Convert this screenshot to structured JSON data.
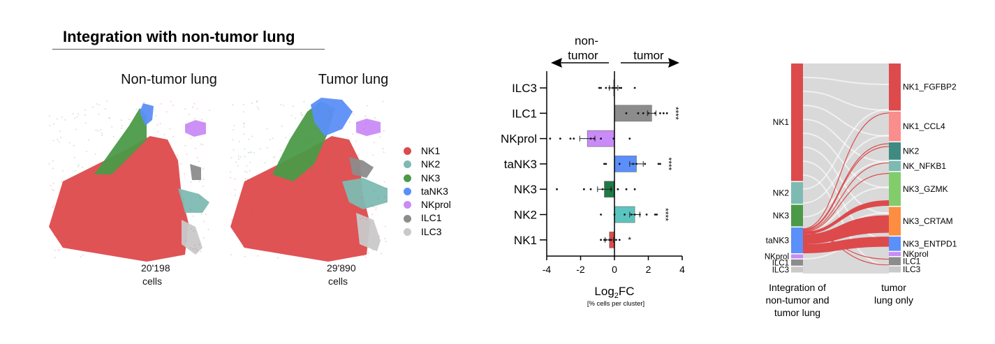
{
  "header": {
    "title": "Integration with non-tumor lung"
  },
  "umap_panels": [
    {
      "title": "Non-tumor lung",
      "count": "20'198",
      "unit": "cells"
    },
    {
      "title": "Tumor lung",
      "count": "29'890",
      "unit": "cells"
    }
  ],
  "legend": [
    {
      "label": "NK1",
      "color": "#dd4a4c"
    },
    {
      "label": "NK2",
      "color": "#7dbab2"
    },
    {
      "label": "NK3",
      "color": "#4b9a48"
    },
    {
      "label": "taNK3",
      "color": "#5b8ff9"
    },
    {
      "label": "NKprol",
      "color": "#c98bf7"
    },
    {
      "label": "ILC1",
      "color": "#8c8c8c"
    },
    {
      "label": "ILC3",
      "color": "#c9c9c9"
    }
  ],
  "chart_data": [
    {
      "type": "bar",
      "orientation": "horizontal",
      "direction_labels": {
        "left": "non-\ntumor",
        "left_line1": "non-",
        "left_line2": "tumor",
        "right": "tumor"
      },
      "categories": [
        "ILC3",
        "ILC1",
        "NKprol",
        "taNK3",
        "NK3",
        "NK2",
        "NK1"
      ],
      "values": [
        -0.05,
        2.2,
        -1.6,
        1.3,
        -0.6,
        1.2,
        -0.3
      ],
      "colors": [
        "#c9c9c9",
        "#8c8c8c",
        "#c98bf7",
        "#5b8ff9",
        "#1f7a45",
        "#5cc4bf",
        "#dd4a4c"
      ],
      "significance": [
        "",
        "****",
        "",
        "****",
        "",
        "****",
        "*"
      ],
      "points": [
        [
          -0.9,
          -0.8,
          -0.5,
          -0.3,
          -0.1,
          0.1,
          0.3,
          0.4,
          1.2
        ],
        [
          0.7,
          1.4,
          1.7,
          2.0,
          2.4,
          2.7,
          2.9,
          3.1
        ],
        [
          -3.8,
          -3.2,
          -2.6,
          -2.4,
          -1.4,
          -1.2,
          -0.8,
          -0.05,
          0.9
        ],
        [
          -0.6,
          -0.5,
          0.3,
          1.1,
          1.3,
          1.8,
          2.6,
          2.7
        ],
        [
          -3.4,
          -1.8,
          -1.4,
          -0.7,
          -0.2,
          0.2,
          0.7,
          1.2
        ],
        [
          -0.8,
          0.0,
          0.6,
          1.0,
          1.2,
          1.5,
          1.9,
          2.4,
          2.5
        ],
        [
          -0.8,
          -0.6,
          -0.5,
          -0.3,
          -0.2,
          0.1,
          0.3
        ]
      ],
      "errors": [
        0.25,
        0.25,
        0.45,
        0.4,
        0.4,
        0.3,
        0.25
      ],
      "xlim": [
        -4,
        4
      ],
      "xticks": [
        "-4",
        "-2",
        "0",
        "2",
        "4"
      ],
      "xlabel_main": "Log",
      "xlabel_sub": "2",
      "xlabel_tail": "FC",
      "xlabel_note": "[% cells per cluster]"
    },
    {
      "type": "sankey",
      "left_nodes": [
        {
          "label": "NK1",
          "color": "#dd4a4c",
          "share": 0.57
        },
        {
          "label": "NK2",
          "color": "#7dbab2",
          "share": 0.105
        },
        {
          "label": "NK3",
          "color": "#4b9a48",
          "share": 0.105
        },
        {
          "label": "taNK3",
          "color": "#5b8ff9",
          "share": 0.125
        },
        {
          "label": "NKprol",
          "color": "#c98bf7",
          "share": 0.02
        },
        {
          "label": "ILC1",
          "color": "#8c8c8c",
          "share": 0.03
        },
        {
          "label": "ILC3",
          "color": "#c9c9c9",
          "share": 0.028
        }
      ],
      "right_nodes": [
        {
          "label": "NK1_FGFBP2",
          "color": "#dd4a4c",
          "share": 0.23
        },
        {
          "label": "NK1_CCL4",
          "color": "#f98e8c",
          "share": 0.145
        },
        {
          "label": "NK2",
          "color": "#3f8a82",
          "share": 0.085
        },
        {
          "label": "NK_NFKB1",
          "color": "#7dbab2",
          "share": 0.05
        },
        {
          "label": "NK3_GZMK",
          "color": "#82cc6c",
          "share": 0.165
        },
        {
          "label": "NK3_CRTAM",
          "color": "#fd8e41",
          "share": 0.14
        },
        {
          "label": "NK3_ENTPD1",
          "color": "#5b8ff9",
          "share": 0.07
        },
        {
          "label": "NKprol",
          "color": "#c98bf7",
          "share": 0.02
        },
        {
          "label": "ILC1",
          "color": "#8c8c8c",
          "share": 0.04
        },
        {
          "label": "ILC3",
          "color": "#c9c9c9",
          "share": 0.03
        }
      ],
      "left_axis_label": [
        "Integration of",
        "non-tumor and",
        "tumor lung"
      ],
      "right_axis_label": [
        "tumor",
        "lung only"
      ],
      "highlight_color": "#dd4a4c",
      "background_flow_color": "#d9d9d9"
    }
  ]
}
